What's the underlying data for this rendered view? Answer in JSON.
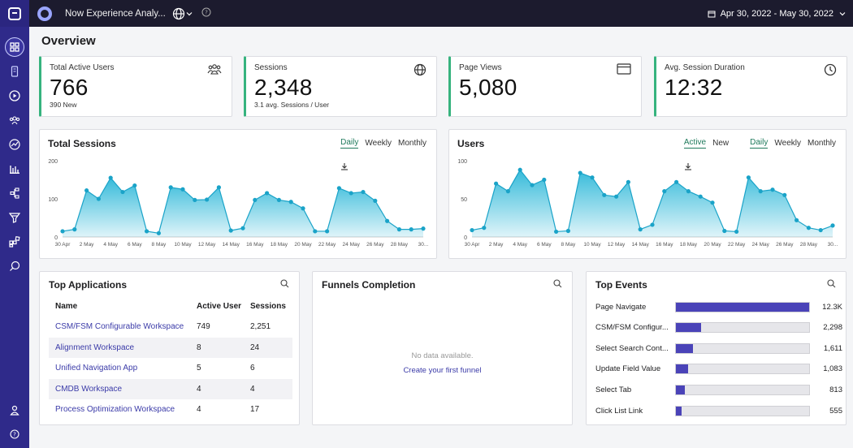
{
  "header": {
    "app_title": "Now Experience Analy...",
    "date_range": "Apr 30, 2022 - May 30, 2022"
  },
  "page": {
    "title": "Overview"
  },
  "kpis": [
    {
      "label": "Total Active Users",
      "value": "766",
      "sub": "390 New",
      "icon": "users-icon"
    },
    {
      "label": "Sessions",
      "value": "2,348",
      "sub": "3.1 avg. Sessions / User",
      "icon": "globe-icon"
    },
    {
      "label": "Page Views",
      "value": "5,080",
      "sub": "",
      "icon": "browser-window-icon"
    },
    {
      "label": "Avg. Session Duration",
      "value": "12:32",
      "sub": "",
      "icon": "clock-icon"
    }
  ],
  "toggles": {
    "daily": "Daily",
    "weekly": "Weekly",
    "monthly": "Monthly",
    "active": "Active",
    "new": "New"
  },
  "chart_data": [
    {
      "type": "area",
      "title": "Total Sessions",
      "xlabel": "",
      "ylabel": "",
      "ylim": [
        0,
        200
      ],
      "yticks": [
        "200",
        "100",
        "0"
      ],
      "x_tick_labels": [
        "30 Apr",
        "2 May",
        "4 May",
        "6 May",
        "8 May",
        "10 May",
        "12 May",
        "14 May",
        "16 May",
        "18 May",
        "20 May",
        "22 May",
        "24 May",
        "26 May",
        "28 May",
        "30..."
      ],
      "values": [
        15,
        20,
        122,
        100,
        155,
        118,
        135,
        15,
        10,
        130,
        125,
        97,
        98,
        130,
        17,
        23,
        97,
        115,
        97,
        92,
        75,
        15,
        15,
        128,
        115,
        118,
        95,
        42,
        20,
        20,
        22
      ],
      "color": "#2bb7d8"
    },
    {
      "type": "area",
      "title": "Users",
      "xlabel": "",
      "ylabel": "",
      "ylim": [
        0,
        100
      ],
      "yticks": [
        "100",
        "50",
        "0"
      ],
      "x_tick_labels": [
        "30 Apr",
        "2 May",
        "4 May",
        "6 May",
        "8 May",
        "10 May",
        "12 May",
        "14 May",
        "16 May",
        "18 May",
        "20 May",
        "22 May",
        "24 May",
        "26 May",
        "28 May",
        "30..."
      ],
      "values": [
        9,
        12,
        70,
        60,
        88,
        68,
        75,
        7,
        8,
        84,
        78,
        55,
        53,
        72,
        10,
        16,
        60,
        72,
        60,
        53,
        45,
        8,
        7,
        78,
        60,
        62,
        55,
        22,
        12,
        9,
        15
      ],
      "color": "#2bb7d8"
    }
  ],
  "top_applications": {
    "title": "Top Applications",
    "columns": [
      "Name",
      "Active User",
      "Sessions"
    ],
    "rows": [
      {
        "name": "CSM/FSM Configurable Workspace",
        "active": "749",
        "sessions": "2,251"
      },
      {
        "name": "Alignment Workspace",
        "active": "8",
        "sessions": "24"
      },
      {
        "name": "Unified Navigation App",
        "active": "5",
        "sessions": "6"
      },
      {
        "name": "CMDB Workspace",
        "active": "4",
        "sessions": "4"
      },
      {
        "name": "Process Optimization Workspace",
        "active": "4",
        "sessions": "17"
      }
    ]
  },
  "funnels": {
    "title": "Funnels Completion",
    "empty": "No data available.",
    "action": "Create your first funnel"
  },
  "top_events": {
    "title": "Top Events",
    "rows": [
      {
        "name": "Page Navigate",
        "value": "12.3K",
        "fraction": 1.0
      },
      {
        "name": "CSM/FSM Configur...",
        "value": "2,298",
        "fraction": 0.19
      },
      {
        "name": "Select Search Cont...",
        "value": "1,611",
        "fraction": 0.13
      },
      {
        "name": "Update Field Value",
        "value": "1,083",
        "fraction": 0.09
      },
      {
        "name": "Select Tab",
        "value": "813",
        "fraction": 0.07
      },
      {
        "name": "Click List Link",
        "value": "555",
        "fraction": 0.045
      }
    ]
  }
}
